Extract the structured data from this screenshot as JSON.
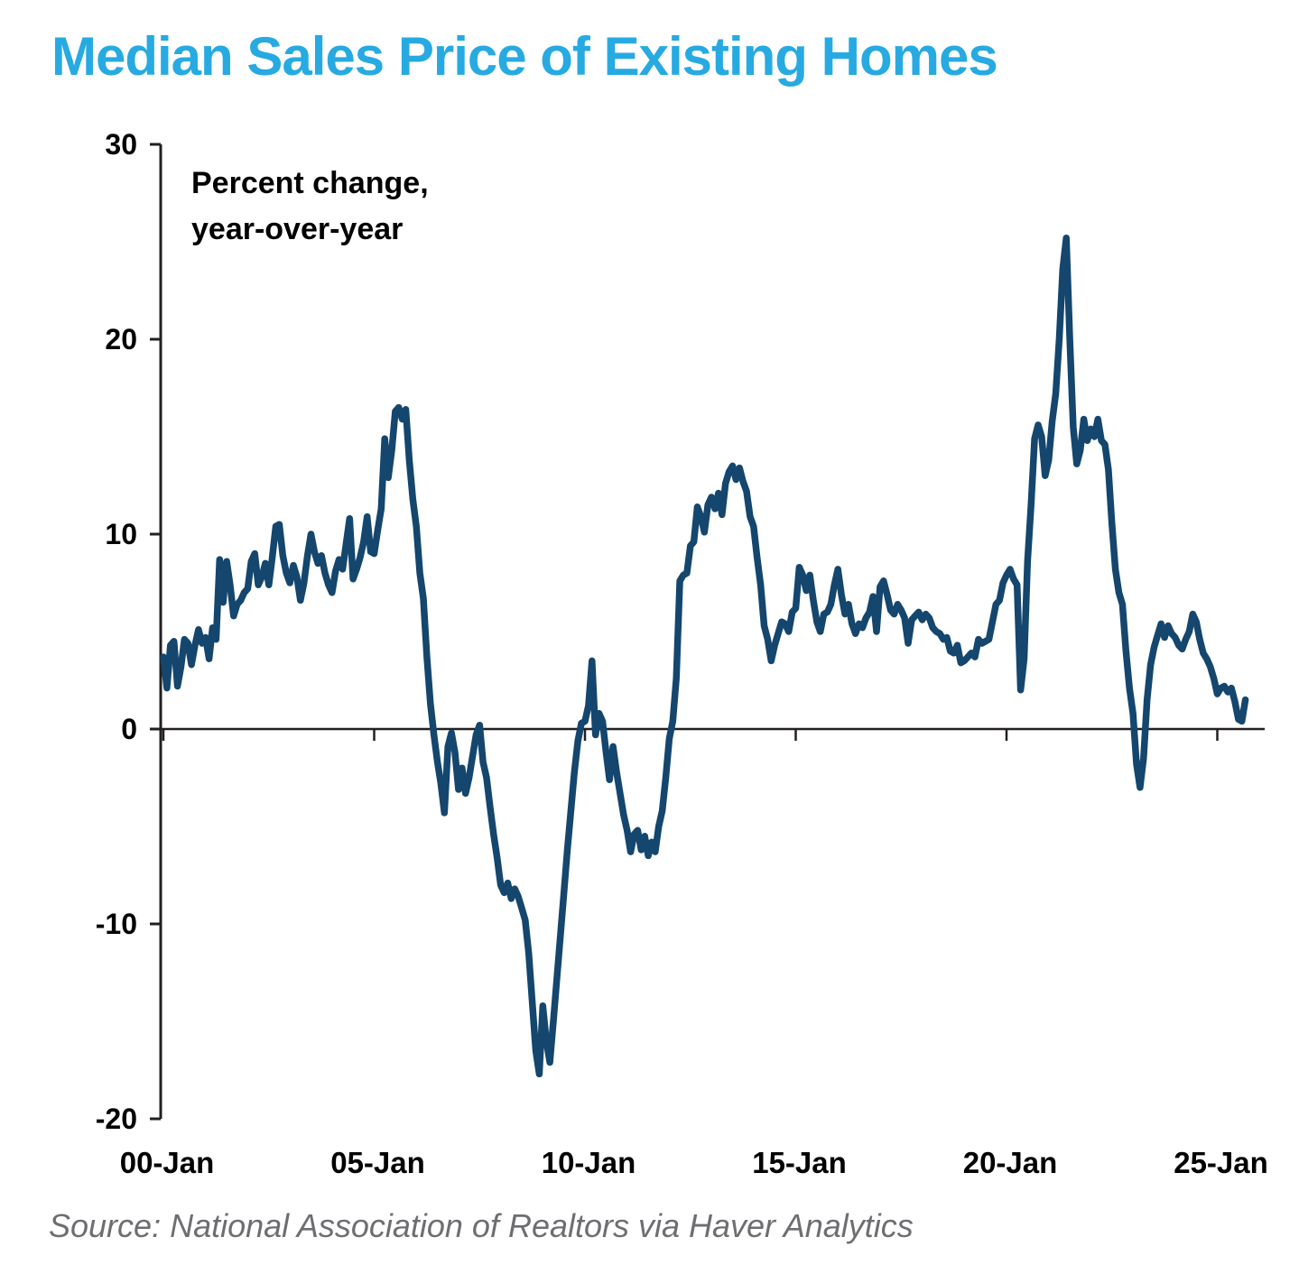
{
  "title": "Median Sales Price of Existing Homes",
  "annotation": "Percent change,\nyear-over-year",
  "source": "Source: National Association of Realtors via Haver Analytics",
  "colors": {
    "title": "#27AAE1",
    "line": "#14466E",
    "axis": "#231F20",
    "source_text": "#6D6E71",
    "annotation_text": "#000000"
  },
  "chart_data": {
    "type": "line",
    "title": "Median Sales Price of Existing Homes",
    "ylabel": "Percent change, year-over-year",
    "frequency": "monthly",
    "x_start": "2000-01",
    "x_end": "2025-09",
    "x_tick_labels": [
      "00-Jan",
      "05-Jan",
      "10-Jan",
      "15-Jan",
      "20-Jan",
      "25-Jan"
    ],
    "x_tick_years": [
      2000,
      2005,
      2010,
      2015,
      2020,
      2025
    ],
    "y_ticks": [
      30,
      20,
      10,
      0,
      -10,
      -20
    ],
    "ylim": [
      -20,
      30
    ],
    "grid": false,
    "legend": false,
    "series": [
      {
        "name": "Median sales price of existing homes, percent change year-over-year",
        "values": [
          3.7,
          2.1,
          4.3,
          4.5,
          2.2,
          3.2,
          4.6,
          4.4,
          3.3,
          4.3,
          5.1,
          4.4,
          4.7,
          3.6,
          5.2,
          4.6,
          8.7,
          6.5,
          8.6,
          7.4,
          5.8,
          6.4,
          6.6,
          7.0,
          7.2,
          8.6,
          9.0,
          7.4,
          7.8,
          8.5,
          7.4,
          8.8,
          10.4,
          10.5,
          8.9,
          8.0,
          7.5,
          8.4,
          7.8,
          6.6,
          7.5,
          8.9,
          10.0,
          9.1,
          8.5,
          8.9,
          8.0,
          7.4,
          7.0,
          8.1,
          8.7,
          8.2,
          9.5,
          10.8,
          7.7,
          8.2,
          8.8,
          9.6,
          10.9,
          9.1,
          9.0,
          10.2,
          11.3,
          14.9,
          12.9,
          14.3,
          16.3,
          16.5,
          15.9,
          16.4,
          13.8,
          11.8,
          10.4,
          8.0,
          6.7,
          3.7,
          1.3,
          -0.3,
          -1.7,
          -2.8,
          -4.3,
          -0.9,
          -0.2,
          -1.2,
          -3.1,
          -2.0,
          -3.3,
          -2.5,
          -1.4,
          -0.3,
          0.2,
          -1.7,
          -2.5,
          -4.0,
          -5.4,
          -6.6,
          -8.0,
          -8.4,
          -7.9,
          -8.7,
          -8.2,
          -8.6,
          -9.2,
          -9.8,
          -11.5,
          -14.0,
          -16.5,
          -17.7,
          -14.2,
          -16.0,
          -17.1,
          -15.0,
          -12.8,
          -10.6,
          -8.4,
          -6.2,
          -4.2,
          -2.2,
          -0.6,
          0.3,
          0.4,
          1.2,
          3.5,
          -0.3,
          0.8,
          0.4,
          -1.2,
          -2.6,
          -0.9,
          -2.2,
          -3.3,
          -4.4,
          -5.2,
          -6.3,
          -5.4,
          -5.2,
          -6.2,
          -5.5,
          -6.5,
          -5.8,
          -6.3,
          -5.0,
          -4.2,
          -2.5,
          -0.5,
          0.4,
          2.6,
          7.6,
          7.9,
          8.0,
          9.4,
          9.6,
          11.4,
          10.9,
          10.1,
          11.5,
          11.9,
          11.3,
          12.1,
          11.0,
          12.6,
          13.2,
          13.5,
          12.8,
          13.4,
          12.7,
          12.2,
          10.9,
          10.4,
          8.8,
          7.4,
          5.3,
          4.6,
          3.5,
          4.3,
          4.9,
          5.5,
          5.4,
          5.0,
          6.0,
          6.2,
          8.3,
          7.9,
          7.1,
          7.9,
          6.6,
          5.5,
          5.0,
          5.9,
          6.0,
          6.4,
          7.4,
          8.2,
          6.9,
          5.9,
          6.4,
          5.4,
          4.9,
          5.4,
          5.2,
          5.7,
          6.0,
          6.8,
          5.0,
          7.3,
          7.6,
          6.9,
          6.1,
          5.9,
          6.4,
          6.1,
          5.7,
          4.4,
          5.6,
          5.8,
          6.0,
          5.6,
          5.9,
          5.7,
          5.2,
          5.0,
          4.9,
          4.6,
          4.7,
          4.0,
          3.9,
          4.3,
          3.4,
          3.5,
          3.7,
          3.9,
          3.7,
          4.6,
          4.4,
          4.5,
          4.6,
          5.5,
          6.4,
          6.6,
          7.5,
          7.9,
          8.2,
          7.7,
          7.4,
          2.0,
          3.6,
          8.6,
          11.5,
          14.9,
          15.6,
          15.0,
          13.0,
          13.8,
          15.8,
          17.2,
          20.0,
          23.6,
          25.2,
          20.0,
          15.5,
          13.6,
          14.3,
          15.9,
          14.8,
          15.4,
          15.0,
          15.9,
          14.8,
          14.6,
          13.3,
          10.5,
          8.2,
          7.0,
          6.4,
          4.0,
          2.1,
          0.8,
          -1.8,
          -3.0,
          -1.5,
          1.5,
          3.3,
          4.2,
          4.8,
          5.4,
          4.7,
          5.3,
          4.9,
          4.7,
          4.3,
          4.1,
          4.6,
          5.0,
          5.9,
          5.5,
          4.6,
          3.9,
          3.6,
          3.2,
          2.6,
          1.8,
          2.1,
          2.2,
          1.9,
          2.1,
          1.4,
          0.5,
          0.4,
          1.5
        ]
      }
    ]
  }
}
